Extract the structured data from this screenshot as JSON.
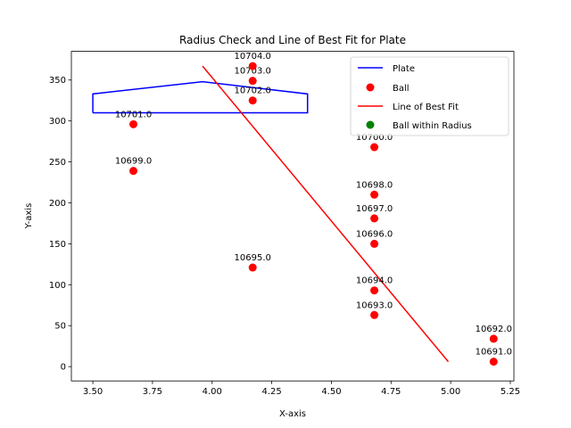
{
  "chart_data": {
    "type": "scatter",
    "title": "Radius Check and Line of Best Fit for Plate",
    "xlabel": "X-axis",
    "ylabel": "Y-axis",
    "xlim": [
      3.41,
      5.265
    ],
    "ylim": [
      -17.5,
      385
    ],
    "x_ticks": [
      "3.50",
      "3.75",
      "4.00",
      "4.25",
      "4.50",
      "4.75",
      "5.00",
      "5.25"
    ],
    "x_tick_values": [
      3.5,
      3.75,
      4.0,
      4.25,
      4.5,
      4.75,
      5.0,
      5.25
    ],
    "y_ticks": [
      "0",
      "50",
      "100",
      "150",
      "200",
      "250",
      "300",
      "350"
    ],
    "y_tick_values": [
      0,
      50,
      100,
      150,
      200,
      250,
      300,
      350
    ],
    "legend_position": "top-right",
    "colors": {
      "plate": "#0000ff",
      "ball": "#ff0000",
      "fit": "#ff0000",
      "within": "#008000"
    },
    "series": [
      {
        "name": "Plate",
        "kind": "line",
        "points": [
          [
            3.5,
            310
          ],
          [
            3.5,
            333
          ],
          [
            3.96,
            348
          ],
          [
            4.4,
            333
          ],
          [
            4.4,
            310
          ],
          [
            3.5,
            310
          ]
        ]
      },
      {
        "name": "Ball",
        "kind": "scatter",
        "points": [
          {
            "x": 5.18,
            "y": 6,
            "label": "10691.0"
          },
          {
            "x": 5.18,
            "y": 34,
            "label": "10692.0"
          },
          {
            "x": 4.68,
            "y": 63,
            "label": "10693.0"
          },
          {
            "x": 4.68,
            "y": 93,
            "label": "10694.0"
          },
          {
            "x": 4.17,
            "y": 121,
            "label": "10695.0"
          },
          {
            "x": 4.68,
            "y": 150,
            "label": "10696.0"
          },
          {
            "x": 4.68,
            "y": 181,
            "label": "10697.0"
          },
          {
            "x": 4.68,
            "y": 210,
            "label": "10698.0"
          },
          {
            "x": 3.67,
            "y": 239,
            "label": "10699.0"
          },
          {
            "x": 4.68,
            "y": 268,
            "label": "10700.0"
          },
          {
            "x": 3.67,
            "y": 296,
            "label": "10701.0"
          },
          {
            "x": 4.17,
            "y": 325,
            "label": "10702.0"
          },
          {
            "x": 4.17,
            "y": 349,
            "label": "10703.0"
          },
          {
            "x": 4.17,
            "y": 367,
            "label": "10704.0"
          }
        ]
      },
      {
        "name": "Line of Best Fit",
        "kind": "line",
        "points": [
          [
            3.96,
            367
          ],
          [
            4.99,
            6
          ]
        ]
      },
      {
        "name": "Ball within Radius",
        "kind": "scatter",
        "points": []
      }
    ]
  }
}
